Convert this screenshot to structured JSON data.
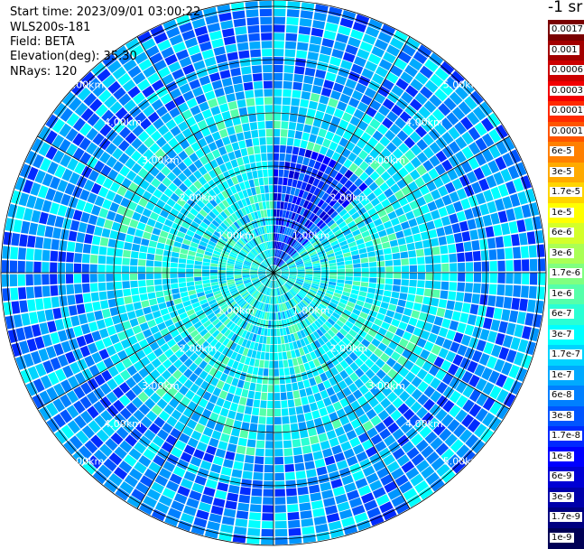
{
  "header": {
    "start_time": "Start time: 2023/09/01 03:00:22",
    "instrument": "WLS200s-181",
    "field": "Field: BETA",
    "elevation": "Elevation(deg): 35.30",
    "nrays": "NRays: 120"
  },
  "colorbar": {
    "title": "-1 sr",
    "labels": [
      "0.0017",
      "0.001",
      "0.0006",
      "0.0003",
      "0.00017",
      "0.0001",
      "6e-5",
      "3e-5",
      "1.7e-5",
      "1e-5",
      "6e-6",
      "3e-6",
      "1.7e-6",
      "1e-6",
      "6e-7",
      "3e-7",
      "1.7e-7",
      "1e-7",
      "6e-8",
      "3e-8",
      "1.7e-8",
      "1e-8",
      "6e-9",
      "3e-9",
      "1.7e-9",
      "1e-9"
    ],
    "colors": [
      "#7a0000",
      "#a30000",
      "#cc0000",
      "#f20000",
      "#ff2a00",
      "#ff5500",
      "#ff8000",
      "#ffaa00",
      "#ffd400",
      "#ffff00",
      "#d4ff2a",
      "#aaff55",
      "#80ff80",
      "#55ffaa",
      "#2affd4",
      "#00ffff",
      "#00d4ff",
      "#00aaff",
      "#0080ff",
      "#0055ff",
      "#002aff",
      "#0000ff",
      "#0000d4",
      "#0000aa",
      "#000080",
      "#000055"
    ]
  },
  "chart_data": {
    "type": "heatmap",
    "title": "",
    "projection": "polar (PPI)",
    "range_unit": "km",
    "range_ring_labels": [
      "1.00km",
      "2.00km",
      "3.00km",
      "4.00km",
      "5.00km"
    ],
    "rays": 120,
    "max_range_km": 5.1,
    "scale": "log",
    "color_range": [
      1e-09,
      0.0017
    ]
  }
}
